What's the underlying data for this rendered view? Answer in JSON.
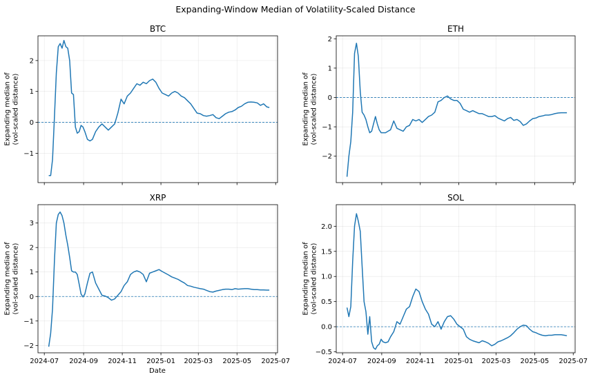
{
  "suptitle": "Expanding-Window Median of Volatility-Scaled Distance",
  "shared_x": {
    "ticks": [
      "2024-07",
      "2024-09",
      "2024-11",
      "2025-01",
      "2025-03",
      "2025-05",
      "2025-07"
    ],
    "label": "Date"
  },
  "colors": {
    "line": "#1f77b4",
    "zero_line": "#1f77b4",
    "grid": "#b0b0b0"
  },
  "chart_data": [
    {
      "type": "line",
      "title": "BTC",
      "ylabel": "Expanding median of\n(vol-scaled distance)",
      "ylim": [
        -1.95,
        2.8
      ],
      "yticks": [
        -1,
        0,
        1,
        2
      ],
      "show_x_ticklabels": false,
      "xlabel": "",
      "grid": true,
      "reference_line": 0,
      "series": [
        {
          "x": [
            "2024-07-08",
            "2024-07-11",
            "2024-07-14",
            "2024-07-17",
            "2024-07-20",
            "2024-07-23",
            "2024-07-26",
            "2024-07-29",
            "2024-08-01",
            "2024-08-04",
            "2024-08-07",
            "2024-08-10",
            "2024-08-13",
            "2024-08-16",
            "2024-08-19",
            "2024-08-22",
            "2024-08-25",
            "2024-08-28",
            "2024-08-31",
            "2024-09-03",
            "2024-09-07",
            "2024-09-11",
            "2024-09-15",
            "2024-09-20",
            "2024-09-25",
            "2024-09-30",
            "2024-10-05",
            "2024-10-10",
            "2024-10-15",
            "2024-10-20",
            "2024-10-25",
            "2024-10-30",
            "2024-11-04",
            "2024-11-09",
            "2024-11-14",
            "2024-11-19",
            "2024-11-24",
            "2024-11-29",
            "2024-12-04",
            "2024-12-09",
            "2024-12-14",
            "2024-12-19",
            "2024-12-24",
            "2024-12-29",
            "2025-01-03",
            "2025-01-08",
            "2025-01-13",
            "2025-01-18",
            "2025-01-23",
            "2025-01-28",
            "2025-02-02",
            "2025-02-07",
            "2025-02-12",
            "2025-02-17",
            "2025-02-22",
            "2025-02-27",
            "2025-03-04",
            "2025-03-09",
            "2025-03-14",
            "2025-03-19",
            "2025-03-24",
            "2025-03-29",
            "2025-04-03",
            "2025-04-08",
            "2025-04-13",
            "2025-04-18",
            "2025-04-23",
            "2025-04-28",
            "2025-05-03",
            "2025-05-08",
            "2025-05-13",
            "2025-05-18",
            "2025-05-23",
            "2025-05-28",
            "2025-06-02",
            "2025-06-07",
            "2025-06-12",
            "2025-06-17",
            "2025-06-21"
          ],
          "y": [
            -1.72,
            -1.72,
            -1.2,
            0.2,
            1.6,
            2.45,
            2.55,
            2.4,
            2.65,
            2.45,
            2.4,
            2.0,
            0.95,
            0.9,
            -0.15,
            -0.35,
            -0.3,
            -0.1,
            -0.15,
            -0.3,
            -0.55,
            -0.6,
            -0.55,
            -0.3,
            -0.15,
            -0.05,
            -0.15,
            -0.25,
            -0.15,
            -0.05,
            0.3,
            0.75,
            0.6,
            0.85,
            0.95,
            1.1,
            1.25,
            1.2,
            1.3,
            1.25,
            1.35,
            1.4,
            1.3,
            1.1,
            0.95,
            0.9,
            0.85,
            0.95,
            1.0,
            0.95,
            0.85,
            0.8,
            0.7,
            0.6,
            0.45,
            0.3,
            0.28,
            0.22,
            0.2,
            0.22,
            0.25,
            0.15,
            0.12,
            0.2,
            0.28,
            0.33,
            0.35,
            0.4,
            0.48,
            0.52,
            0.6,
            0.65,
            0.66,
            0.65,
            0.63,
            0.55,
            0.6,
            0.5,
            0.48
          ]
        }
      ]
    },
    {
      "type": "line",
      "title": "ETH",
      "ylabel": "Expanding median of\n(vol-scaled distance)",
      "ylim": [
        -2.9,
        2.1
      ],
      "yticks": [
        -2,
        -1,
        0,
        1,
        2
      ],
      "show_x_ticklabels": false,
      "xlabel": "",
      "grid": true,
      "reference_line": 0,
      "series": [
        {
          "x": [
            "2024-07-08",
            "2024-07-11",
            "2024-07-14",
            "2024-07-17",
            "2024-07-20",
            "2024-07-23",
            "2024-07-26",
            "2024-07-29",
            "2024-08-01",
            "2024-08-04",
            "2024-08-07",
            "2024-08-10",
            "2024-08-13",
            "2024-08-16",
            "2024-08-19",
            "2024-08-22",
            "2024-08-25",
            "2024-08-28",
            "2024-08-31",
            "2024-09-03",
            "2024-09-07",
            "2024-09-11",
            "2024-09-15",
            "2024-09-20",
            "2024-09-25",
            "2024-09-30",
            "2024-10-05",
            "2024-10-10",
            "2024-10-15",
            "2024-10-20",
            "2024-10-25",
            "2024-10-30",
            "2024-11-04",
            "2024-11-09",
            "2024-11-14",
            "2024-11-19",
            "2024-11-24",
            "2024-11-29",
            "2024-12-04",
            "2024-12-09",
            "2024-12-14",
            "2024-12-19",
            "2024-12-24",
            "2024-12-29",
            "2025-01-03",
            "2025-01-08",
            "2025-01-13",
            "2025-01-18",
            "2025-01-23",
            "2025-01-28",
            "2025-02-02",
            "2025-02-07",
            "2025-02-12",
            "2025-02-17",
            "2025-02-22",
            "2025-02-27",
            "2025-03-04",
            "2025-03-09",
            "2025-03-14",
            "2025-03-19",
            "2025-03-24",
            "2025-03-29",
            "2025-04-03",
            "2025-04-08",
            "2025-04-13",
            "2025-04-18",
            "2025-04-23",
            "2025-04-28",
            "2025-05-03",
            "2025-05-08",
            "2025-05-13",
            "2025-05-18",
            "2025-05-23",
            "2025-05-28",
            "2025-06-02",
            "2025-06-07",
            "2025-06-12",
            "2025-06-17",
            "2025-06-21"
          ],
          "y": [
            -2.7,
            -2.0,
            -1.5,
            -0.5,
            1.5,
            1.85,
            1.4,
            0.2,
            -0.5,
            -0.6,
            -0.75,
            -1.0,
            -1.2,
            -1.15,
            -0.9,
            -0.65,
            -0.9,
            -1.1,
            -1.2,
            -1.2,
            -1.2,
            -1.15,
            -1.1,
            -0.8,
            -1.05,
            -1.1,
            -1.15,
            -1.0,
            -0.95,
            -0.75,
            -0.8,
            -0.75,
            -0.85,
            -0.75,
            -0.65,
            -0.6,
            -0.5,
            -0.15,
            -0.1,
            0.0,
            0.05,
            -0.05,
            -0.1,
            -0.1,
            -0.2,
            -0.4,
            -0.45,
            -0.5,
            -0.45,
            -0.5,
            -0.55,
            -0.55,
            -0.6,
            -0.65,
            -0.65,
            -0.62,
            -0.7,
            -0.75,
            -0.8,
            -0.72,
            -0.68,
            -0.78,
            -0.75,
            -0.82,
            -0.95,
            -0.9,
            -0.8,
            -0.72,
            -0.7,
            -0.65,
            -0.63,
            -0.6,
            -0.6,
            -0.58,
            -0.55,
            -0.53,
            -0.52,
            -0.52,
            -0.52
          ]
        }
      ]
    },
    {
      "type": "line",
      "title": "XRP",
      "ylabel": "Expanding median of\n(vol-scaled distance)",
      "ylim": [
        -2.3,
        3.75
      ],
      "yticks": [
        -2,
        -1,
        0,
        1,
        2,
        3
      ],
      "show_x_ticklabels": true,
      "xlabel": "Date",
      "grid": true,
      "reference_line": 0,
      "series": [
        {
          "x": [
            "2024-07-08",
            "2024-07-11",
            "2024-07-14",
            "2024-07-17",
            "2024-07-20",
            "2024-07-23",
            "2024-07-26",
            "2024-07-29",
            "2024-08-01",
            "2024-08-04",
            "2024-08-07",
            "2024-08-10",
            "2024-08-13",
            "2024-08-16",
            "2024-08-19",
            "2024-08-22",
            "2024-08-25",
            "2024-08-28",
            "2024-08-31",
            "2024-09-03",
            "2024-09-07",
            "2024-09-11",
            "2024-09-15",
            "2024-09-20",
            "2024-09-25",
            "2024-09-30",
            "2024-10-05",
            "2024-10-10",
            "2024-10-15",
            "2024-10-20",
            "2024-10-25",
            "2024-10-30",
            "2024-11-04",
            "2024-11-09",
            "2024-11-14",
            "2024-11-19",
            "2024-11-24",
            "2024-11-29",
            "2024-12-04",
            "2024-12-09",
            "2024-12-14",
            "2024-12-19",
            "2024-12-24",
            "2024-12-29",
            "2025-01-03",
            "2025-01-08",
            "2025-01-13",
            "2025-01-18",
            "2025-01-23",
            "2025-01-28",
            "2025-02-02",
            "2025-02-07",
            "2025-02-12",
            "2025-02-17",
            "2025-02-22",
            "2025-02-27",
            "2025-03-04",
            "2025-03-09",
            "2025-03-14",
            "2025-03-19",
            "2025-03-24",
            "2025-03-29",
            "2025-04-03",
            "2025-04-08",
            "2025-04-13",
            "2025-04-18",
            "2025-04-23",
            "2025-04-28",
            "2025-05-03",
            "2025-05-08",
            "2025-05-13",
            "2025-05-18",
            "2025-05-23",
            "2025-05-28",
            "2025-06-02",
            "2025-06-07",
            "2025-06-12",
            "2025-06-17",
            "2025-06-21"
          ],
          "y": [
            -2.05,
            -1.5,
            -0.5,
            1.5,
            3.0,
            3.35,
            3.45,
            3.3,
            3.0,
            2.5,
            2.1,
            1.6,
            1.05,
            1.0,
            1.0,
            0.9,
            0.5,
            0.1,
            -0.02,
            0.1,
            0.55,
            0.95,
            1.0,
            0.55,
            0.3,
            0.05,
            0.02,
            -0.05,
            -0.15,
            -0.1,
            0.05,
            0.2,
            0.45,
            0.6,
            0.9,
            1.0,
            1.05,
            1.0,
            0.9,
            0.6,
            0.95,
            1.0,
            1.05,
            1.1,
            1.02,
            0.95,
            0.88,
            0.8,
            0.75,
            0.7,
            0.62,
            0.55,
            0.45,
            0.42,
            0.38,
            0.35,
            0.32,
            0.3,
            0.25,
            0.2,
            0.18,
            0.22,
            0.25,
            0.28,
            0.3,
            0.3,
            0.28,
            0.32,
            0.3,
            0.31,
            0.32,
            0.32,
            0.3,
            0.28,
            0.28,
            0.27,
            0.27,
            0.26,
            0.26
          ]
        }
      ]
    },
    {
      "type": "line",
      "title": "SOL",
      "ylabel": "Expanding median of\n(vol-scaled distance)",
      "ylim": [
        -0.52,
        2.43
      ],
      "yticks": [
        -0.5,
        0.0,
        0.5,
        1.0,
        1.5,
        2.0
      ],
      "ytick_labels": [
        "−0.5",
        "0.0",
        "0.5",
        "1.0",
        "1.5",
        "2.0"
      ],
      "show_x_ticklabels": true,
      "xlabel": "",
      "grid": true,
      "reference_line": 0,
      "series": [
        {
          "x": [
            "2024-07-08",
            "2024-07-11",
            "2024-07-14",
            "2024-07-17",
            "2024-07-20",
            "2024-07-23",
            "2024-07-26",
            "2024-07-29",
            "2024-08-01",
            "2024-08-04",
            "2024-08-07",
            "2024-08-10",
            "2024-08-13",
            "2024-08-16",
            "2024-08-19",
            "2024-08-22",
            "2024-08-25",
            "2024-08-28",
            "2024-08-31",
            "2024-09-03",
            "2024-09-07",
            "2024-09-11",
            "2024-09-15",
            "2024-09-20",
            "2024-09-25",
            "2024-09-30",
            "2024-10-05",
            "2024-10-10",
            "2024-10-15",
            "2024-10-20",
            "2024-10-25",
            "2024-10-30",
            "2024-11-04",
            "2024-11-09",
            "2024-11-14",
            "2024-11-19",
            "2024-11-24",
            "2024-11-29",
            "2024-12-04",
            "2024-12-09",
            "2024-12-14",
            "2024-12-19",
            "2024-12-24",
            "2024-12-29",
            "2025-01-03",
            "2025-01-08",
            "2025-01-13",
            "2025-01-18",
            "2025-01-23",
            "2025-01-28",
            "2025-02-02",
            "2025-02-07",
            "2025-02-12",
            "2025-02-17",
            "2025-02-22",
            "2025-02-27",
            "2025-03-04",
            "2025-03-09",
            "2025-03-14",
            "2025-03-19",
            "2025-03-24",
            "2025-03-29",
            "2025-04-03",
            "2025-04-08",
            "2025-04-13",
            "2025-04-18",
            "2025-04-23",
            "2025-04-28",
            "2025-05-03",
            "2025-05-08",
            "2025-05-13",
            "2025-05-18",
            "2025-05-23",
            "2025-05-28",
            "2025-06-02",
            "2025-06-07",
            "2025-06-12",
            "2025-06-17",
            "2025-06-21"
          ],
          "y": [
            0.38,
            0.2,
            0.4,
            1.3,
            2.0,
            2.25,
            2.1,
            1.9,
            1.2,
            0.5,
            0.3,
            -0.15,
            0.2,
            -0.3,
            -0.42,
            -0.45,
            -0.38,
            -0.35,
            -0.25,
            -0.3,
            -0.32,
            -0.3,
            -0.2,
            -0.1,
            0.1,
            0.05,
            0.2,
            0.35,
            0.4,
            0.6,
            0.75,
            0.7,
            0.5,
            0.35,
            0.25,
            0.05,
            0.0,
            0.1,
            -0.05,
            0.1,
            0.2,
            0.22,
            0.15,
            0.05,
            0.0,
            -0.05,
            -0.2,
            -0.25,
            -0.28,
            -0.3,
            -0.32,
            -0.28,
            -0.3,
            -0.33,
            -0.38,
            -0.35,
            -0.3,
            -0.28,
            -0.25,
            -0.22,
            -0.18,
            -0.12,
            -0.05,
            0.0,
            0.03,
            0.02,
            -0.05,
            -0.1,
            -0.12,
            -0.15,
            -0.17,
            -0.18,
            -0.17,
            -0.17,
            -0.16,
            -0.16,
            -0.16,
            -0.17,
            -0.18
          ]
        }
      ]
    }
  ]
}
